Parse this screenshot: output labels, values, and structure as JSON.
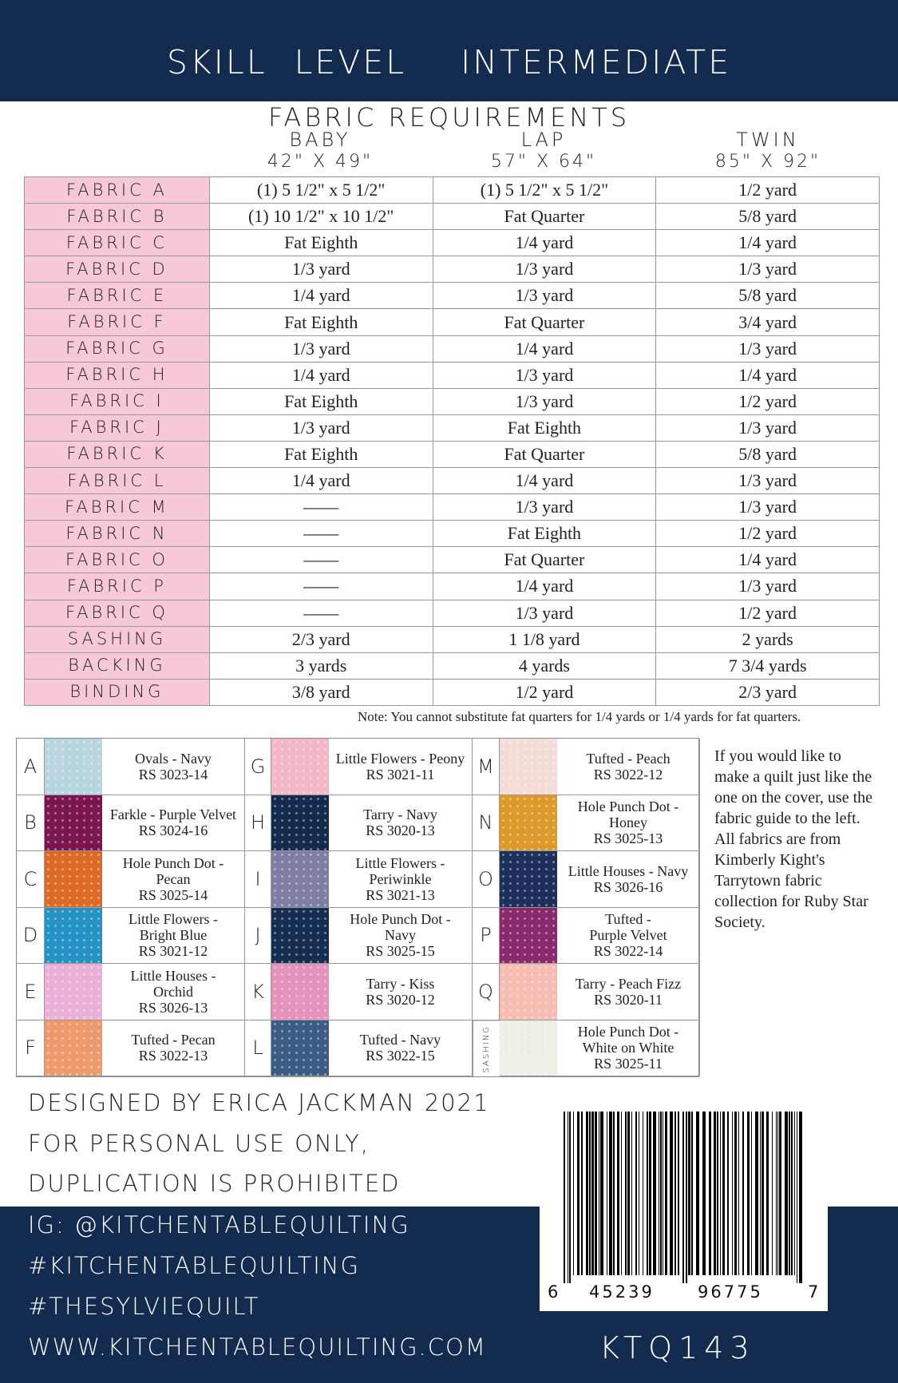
{
  "header": {
    "title": "SKILL LEVEL  INTERMEDIATE"
  },
  "requirements": {
    "title": "FABRIC REQUIREMENTS",
    "columns": [
      {
        "name": "BABY",
        "size": "42\" X 49\""
      },
      {
        "name": "LAP",
        "size": "57\" X 64\""
      },
      {
        "name": "TWIN",
        "size": "85\" X 92\""
      }
    ],
    "rows": [
      [
        "FABRIC A",
        "(1) 5 1/2\" x 5 1/2\"",
        "(1) 5 1/2\" x 5 1/2\"",
        "1/2 yard"
      ],
      [
        "FABRIC B",
        "(1) 10 1/2\" x 10 1/2\"",
        "Fat Quarter",
        "5/8 yard"
      ],
      [
        "FABRIC C",
        "Fat Eighth",
        "1/4 yard",
        "1/4 yard"
      ],
      [
        "FABRIC D",
        "1/3 yard",
        "1/3 yard",
        "1/3 yard"
      ],
      [
        "FABRIC E",
        "1/4 yard",
        "1/3 yard",
        "5/8 yard"
      ],
      [
        "FABRIC F",
        "Fat Eighth",
        "Fat Quarter",
        "3/4 yard"
      ],
      [
        "FABRIC G",
        "1/3 yard",
        "1/4 yard",
        "1/3 yard"
      ],
      [
        "FABRIC H",
        "1/4 yard",
        "1/3 yard",
        "1/4 yard"
      ],
      [
        "FABRIC I",
        "Fat Eighth",
        "1/3 yard",
        "1/2 yard"
      ],
      [
        "FABRIC J",
        "1/3 yard",
        "Fat Eighth",
        "1/3 yard"
      ],
      [
        "FABRIC K",
        "Fat Eighth",
        "Fat Quarter",
        "5/8 yard"
      ],
      [
        "FABRIC L",
        "1/4 yard",
        "1/4 yard",
        "1/3 yard"
      ],
      [
        "FABRIC M",
        "——",
        "1/3 yard",
        "1/3 yard"
      ],
      [
        "FABRIC N",
        "——",
        "Fat Eighth",
        "1/2 yard"
      ],
      [
        "FABRIC O",
        "——",
        "Fat Quarter",
        "1/4 yard"
      ],
      [
        "FABRIC P",
        "——",
        "1/4 yard",
        "1/3 yard"
      ],
      [
        "FABRIC Q",
        "——",
        "1/3 yard",
        "1/2 yard"
      ],
      [
        "SASHING",
        "2/3 yard",
        "1 1/8 yard",
        "2 yards"
      ],
      [
        "BACKING",
        "3 yards",
        "4 yards",
        "7 3/4 yards"
      ],
      [
        "BINDING",
        "3/8 yard",
        "1/2 yard",
        "2/3 yard"
      ]
    ],
    "note": "Note: You cannot substitute fat quarters for 1/4 yards or 1/4 yards for fat quarters."
  },
  "swatches": [
    {
      "letter": "A",
      "lines": [
        "Ovals - Navy",
        "RS 3023-14"
      ],
      "color": "#b9d6e0"
    },
    {
      "letter": "G",
      "lines": [
        "Little Flowers - Peony",
        "RS 3021-11"
      ],
      "color": "#f3b7c8"
    },
    {
      "letter": "M",
      "lines": [
        "Tufted - Peach",
        "RS 3022-12"
      ],
      "color": "#f6dcd8"
    },
    {
      "letter": "B",
      "lines": [
        "Farkle - Purple Velvet",
        "RS 3024-16"
      ],
      "color": "#7a1650"
    },
    {
      "letter": "H",
      "lines": [
        "Tarry - Navy",
        "RS 3020-13"
      ],
      "color": "#142a4c"
    },
    {
      "letter": "N",
      "lines": [
        "Hole Punch Dot -",
        "Honey",
        "RS 3025-13"
      ],
      "color": "#dc9a2a"
    },
    {
      "letter": "C",
      "lines": [
        "Hole Punch Dot -",
        "Pecan",
        "RS 3025-14"
      ],
      "color": "#dc6a26"
    },
    {
      "letter": "I",
      "lines": [
        "Little Flowers -",
        "Periwinkle",
        "RS 3021-13"
      ],
      "color": "#7f7ea2"
    },
    {
      "letter": "O",
      "lines": [
        "Little Houses - Navy",
        "RS 3026-16"
      ],
      "color": "#1d2f5a"
    },
    {
      "letter": "D",
      "lines": [
        "Little Flowers -",
        "Bright Blue",
        "RS 3021-12"
      ],
      "color": "#2592c4"
    },
    {
      "letter": "J",
      "lines": [
        "Hole Punch Dot -",
        "Navy",
        "RS 3025-15"
      ],
      "color": "#162d52"
    },
    {
      "letter": "P",
      "lines": [
        "Tufted -",
        "Purple Velvet",
        "RS 3022-14"
      ],
      "color": "#8a2a6e"
    },
    {
      "letter": "E",
      "lines": [
        "Little Houses -",
        "Orchid",
        "RS 3026-13"
      ],
      "color": "#eab0d8"
    },
    {
      "letter": "K",
      "lines": [
        "Tarry - Kiss",
        "RS 3020-12"
      ],
      "color": "#e493bd"
    },
    {
      "letter": "Q",
      "lines": [
        "Tarry - Peach Fizz",
        "RS 3020-11"
      ],
      "color": "#f7bcb2"
    },
    {
      "letter": "F",
      "lines": [
        "Tufted - Pecan",
        "RS 3022-13"
      ],
      "color": "#ee9a6c"
    },
    {
      "letter": "L",
      "lines": [
        "Tufted - Navy",
        "RS 3022-15"
      ],
      "color": "#3a5c84"
    },
    {
      "letter": "SASHING",
      "lines": [
        "Hole Punch Dot -",
        "White on White",
        "RS 3025-11"
      ],
      "color": "#efeee4"
    }
  ],
  "side_text": "If you would like to make a quilt just like the one on the cover, use the fabric guide to the left. All fabrics are from Kimberly Kight's Tarrytown fabric collection for Ruby Star Society.",
  "footer": {
    "lines": [
      "DESIGNED BY ERICA JACKMAN 2021",
      "FOR PERSONAL USE ONLY,",
      "DUPLICATION IS PROHIBITED"
    ],
    "social": [
      "IG: @KITCHENTABLEQUILTING",
      "#KITCHENTABLEQUILTING",
      "#THESYLVIEQUILT",
      "WWW.KITCHENTABLEQUILTING.COM"
    ],
    "barcode_digits": [
      "6",
      "45239",
      "96775",
      "7"
    ],
    "code": "KTQ143"
  },
  "colors": {
    "navy": "#132b4f",
    "pink": "#f6c8da"
  }
}
